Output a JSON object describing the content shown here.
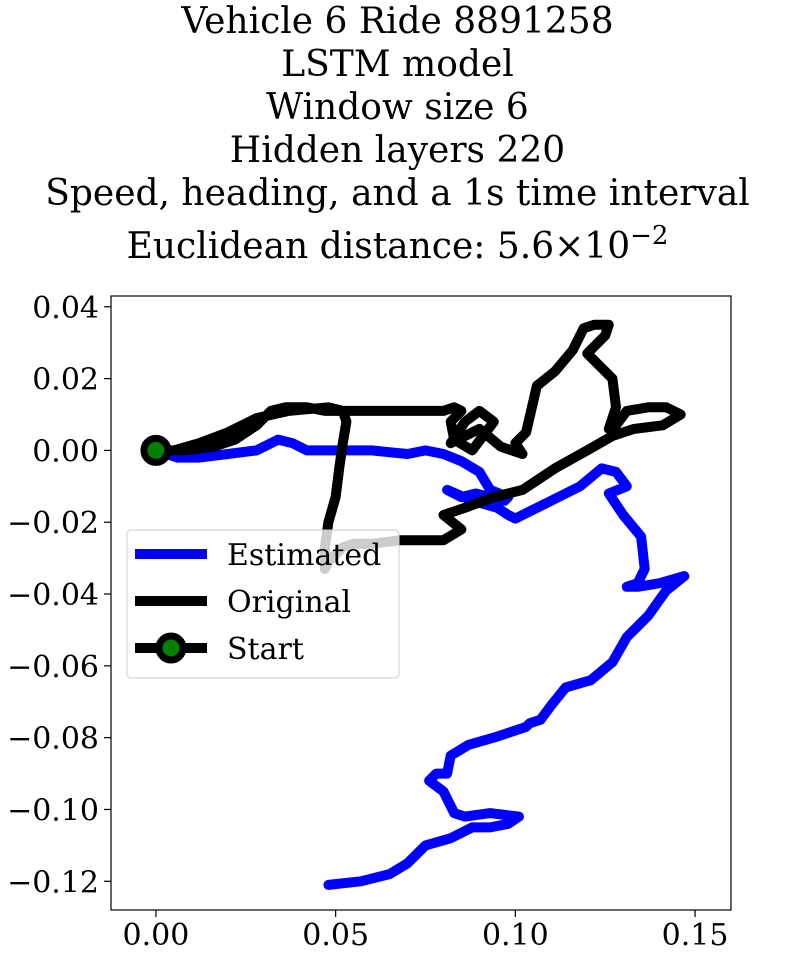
{
  "chart_data": {
    "type": "line",
    "title_lines": [
      "Vehicle 6 Ride 8891258",
      "LSTM model",
      "Window size 6",
      "Hidden layers 220",
      "Speed, heading, and a 1s time interval"
    ],
    "title_metric_label": "Euclidean distance: ",
    "title_metric_mantissa": "5.6",
    "title_metric_times": "×",
    "title_metric_base": "10",
    "title_metric_exponent": "−2",
    "xlim": [
      -0.0125,
      0.16
    ],
    "ylim": [
      -0.128,
      0.043
    ],
    "xticks": [
      0.0,
      0.05,
      0.1,
      0.15
    ],
    "xtick_labels": [
      "0.00",
      "0.05",
      "0.10",
      "0.15"
    ],
    "yticks": [
      0.04,
      0.02,
      0.0,
      -0.02,
      -0.04,
      -0.06,
      -0.08,
      -0.1,
      -0.12
    ],
    "ytick_labels": [
      "0.04",
      "0.02",
      "0.00",
      "−0.02",
      "−0.04",
      "−0.06",
      "−0.08",
      "−0.10",
      "−0.12"
    ],
    "legend_position": "center-left",
    "grid": false,
    "series": [
      {
        "name": "Estimated",
        "color": "#0000ff",
        "x": [
          0.0,
          0.006,
          0.012,
          0.02,
          0.028,
          0.034,
          0.038,
          0.042,
          0.05,
          0.06,
          0.07,
          0.075,
          0.08,
          0.085,
          0.09,
          0.093,
          0.098,
          0.097,
          0.089,
          0.085,
          0.081,
          0.088,
          0.095,
          0.098,
          0.1,
          0.104,
          0.11,
          0.118,
          0.124,
          0.128,
          0.131,
          0.126,
          0.13,
          0.135,
          0.136,
          0.134,
          0.131,
          0.134,
          0.14,
          0.147,
          0.142,
          0.137,
          0.131,
          0.127,
          0.121,
          0.114,
          0.11,
          0.107,
          0.104,
          0.103,
          0.1,
          0.094,
          0.087,
          0.082,
          0.081,
          0.078,
          0.076,
          0.08,
          0.083,
          0.086,
          0.093,
          0.101,
          0.098,
          0.093,
          0.088,
          0.082,
          0.075,
          0.07,
          0.065,
          0.057,
          0.048
        ],
        "y": [
          0.0,
          -0.002,
          -0.002,
          -0.001,
          0.0,
          0.003,
          0.002,
          0.0,
          0.0,
          0.0,
          -0.001,
          0.0,
          -0.001,
          -0.003,
          -0.006,
          -0.011,
          -0.013,
          -0.014,
          -0.012,
          -0.013,
          -0.011,
          -0.014,
          -0.016,
          -0.018,
          -0.019,
          -0.017,
          -0.014,
          -0.01,
          -0.005,
          -0.006,
          -0.01,
          -0.012,
          -0.018,
          -0.024,
          -0.033,
          -0.037,
          -0.038,
          -0.038,
          -0.037,
          -0.035,
          -0.039,
          -0.046,
          -0.052,
          -0.059,
          -0.064,
          -0.066,
          -0.071,
          -0.075,
          -0.076,
          -0.077,
          -0.078,
          -0.08,
          -0.082,
          -0.085,
          -0.09,
          -0.09,
          -0.092,
          -0.095,
          -0.101,
          -0.102,
          -0.101,
          -0.102,
          -0.104,
          -0.105,
          -0.105,
          -0.108,
          -0.11,
          -0.115,
          -0.118,
          -0.12,
          -0.121
        ]
      },
      {
        "name": "Original",
        "color": "#000000",
        "x": [
          0.0,
          0.008,
          0.016,
          0.022,
          0.028,
          0.032,
          0.036,
          0.042,
          0.047,
          0.052,
          0.062,
          0.072,
          0.08,
          0.083,
          0.085,
          0.082,
          0.083,
          0.088,
          0.094,
          0.09,
          0.086,
          0.082,
          0.086,
          0.09,
          0.096,
          0.102,
          0.1,
          0.103,
          0.106,
          0.111,
          0.116,
          0.119,
          0.122,
          0.126,
          0.125,
          0.12,
          0.127,
          0.128,
          0.126,
          0.128,
          0.131,
          0.137,
          0.142,
          0.146,
          0.141,
          0.133,
          0.127,
          0.12,
          0.111,
          0.102,
          0.094,
          0.086,
          0.08,
          0.085,
          0.08,
          0.076,
          0.068,
          0.06,
          0.055,
          0.052,
          0.048,
          0.047,
          0.047,
          0.048,
          0.05,
          0.051,
          0.052,
          0.053,
          0.052,
          0.048,
          0.037,
          0.028,
          0.02,
          0.012,
          0.005,
          0.0
        ],
        "y": [
          0.0,
          0.0,
          0.001,
          0.003,
          0.007,
          0.011,
          0.012,
          0.012,
          0.011,
          0.011,
          0.011,
          0.011,
          0.011,
          0.012,
          0.011,
          0.008,
          0.003,
          0.0,
          0.008,
          0.011,
          0.008,
          0.002,
          0.004,
          0.006,
          0.001,
          -0.001,
          0.002,
          0.005,
          0.018,
          0.022,
          0.028,
          0.034,
          0.035,
          0.035,
          0.032,
          0.027,
          0.02,
          0.012,
          0.006,
          0.007,
          0.011,
          0.012,
          0.012,
          0.01,
          0.007,
          0.006,
          0.004,
          0.0,
          -0.005,
          -0.011,
          -0.013,
          -0.016,
          -0.018,
          -0.022,
          -0.025,
          -0.025,
          -0.025,
          -0.026,
          -0.026,
          -0.027,
          -0.031,
          -0.033,
          -0.027,
          -0.02,
          -0.013,
          -0.005,
          0.002,
          0.008,
          0.011,
          0.012,
          0.011,
          0.009,
          0.005,
          0.002,
          0.0,
          0.0
        ]
      }
    ],
    "start": {
      "name": "Start",
      "x": 0.0,
      "y": 0.0,
      "face_color": "#008000",
      "edge_color": "#000000"
    }
  }
}
